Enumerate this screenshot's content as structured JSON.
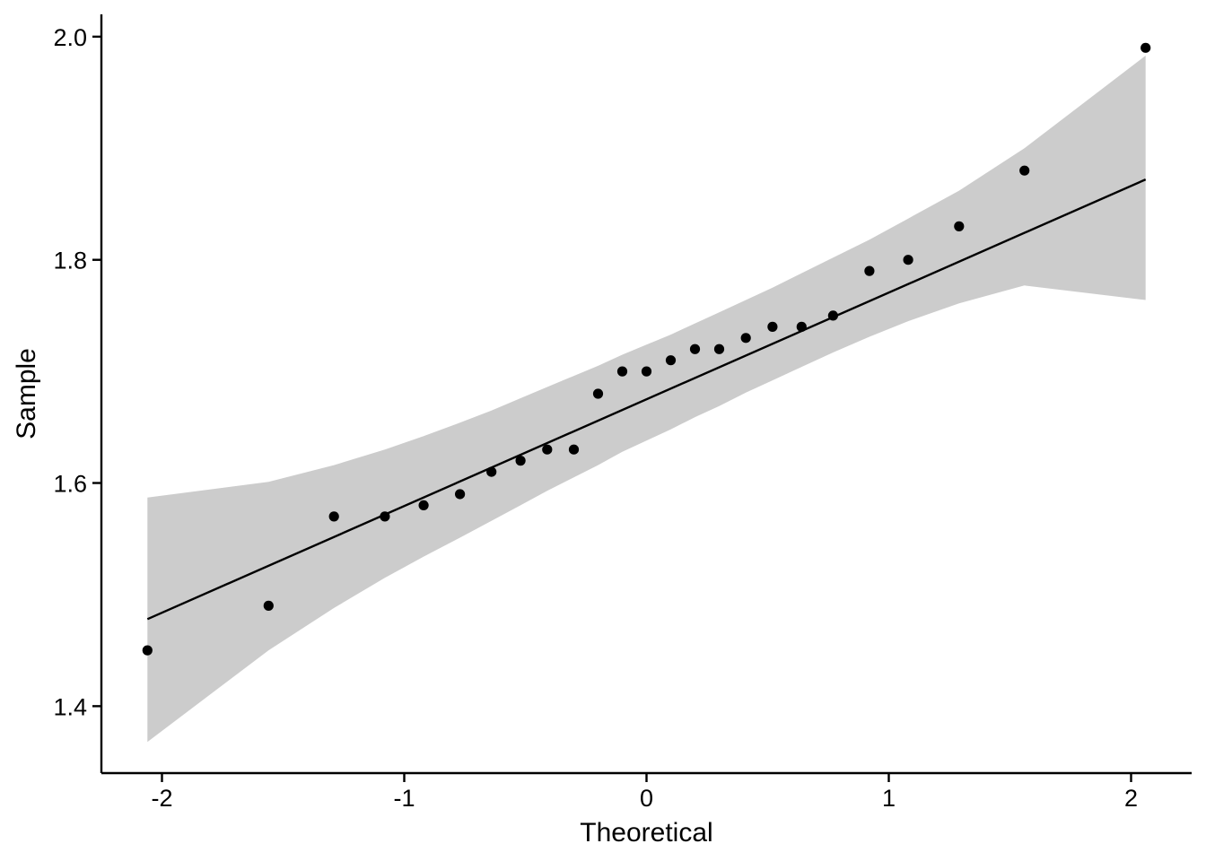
{
  "chart_data": {
    "type": "scatter",
    "subtype": "qq-plot",
    "title": "",
    "xlabel": "Theoretical",
    "ylabel": "Sample",
    "xlim": [
      -2.25,
      2.25
    ],
    "ylim": [
      1.34,
      2.02
    ],
    "x_ticks": [
      -2,
      -1,
      0,
      1,
      2
    ],
    "x_tick_labels": [
      "-2",
      "-1",
      "0",
      "1",
      "2"
    ],
    "y_ticks": [
      1.4,
      1.6,
      1.8,
      2.0
    ],
    "y_tick_labels": [
      "1.4",
      "1.6",
      "1.8",
      "2.0"
    ],
    "grid": false,
    "legend": "none",
    "points": {
      "x": [
        -2.06,
        -1.56,
        -1.29,
        -1.08,
        -0.92,
        -0.77,
        -0.64,
        -0.52,
        -0.41,
        -0.3,
        -0.2,
        -0.1,
        0.0,
        0.1,
        0.2,
        0.3,
        0.41,
        0.52,
        0.64,
        0.77,
        0.92,
        1.08,
        1.29,
        1.56,
        2.06
      ],
      "y": [
        1.45,
        1.49,
        1.57,
        1.57,
        1.58,
        1.59,
        1.61,
        1.62,
        1.63,
        1.63,
        1.68,
        1.7,
        1.7,
        1.71,
        1.72,
        1.72,
        1.73,
        1.74,
        1.74,
        1.75,
        1.79,
        1.8,
        1.83,
        1.88,
        1.99
      ]
    },
    "reference_line": {
      "x": [
        -2.06,
        2.06
      ],
      "y": [
        1.478,
        1.872
      ]
    },
    "confidence_band": {
      "x": [
        -2.06,
        -1.56,
        -1.29,
        -1.08,
        -0.92,
        -0.77,
        -0.64,
        -0.52,
        -0.41,
        -0.3,
        -0.2,
        -0.1,
        0.0,
        0.1,
        0.2,
        0.3,
        0.41,
        0.52,
        0.64,
        0.77,
        0.92,
        1.08,
        1.29,
        1.56,
        2.06
      ],
      "upper": [
        1.587,
        1.601,
        1.616,
        1.63,
        1.642,
        1.654,
        1.665,
        1.676,
        1.686,
        1.696,
        1.705,
        1.715,
        1.724,
        1.733,
        1.743,
        1.753,
        1.764,
        1.775,
        1.788,
        1.802,
        1.818,
        1.837,
        1.862,
        1.9,
        1.983
      ],
      "lower": [
        1.368,
        1.45,
        1.488,
        1.515,
        1.534,
        1.551,
        1.566,
        1.58,
        1.593,
        1.605,
        1.616,
        1.628,
        1.638,
        1.648,
        1.659,
        1.669,
        1.681,
        1.692,
        1.704,
        1.717,
        1.731,
        1.745,
        1.761,
        1.777,
        1.764
      ]
    },
    "colors": {
      "points": "#000000",
      "line": "#000000",
      "band": "#cccccc",
      "axis": "#000000"
    }
  }
}
